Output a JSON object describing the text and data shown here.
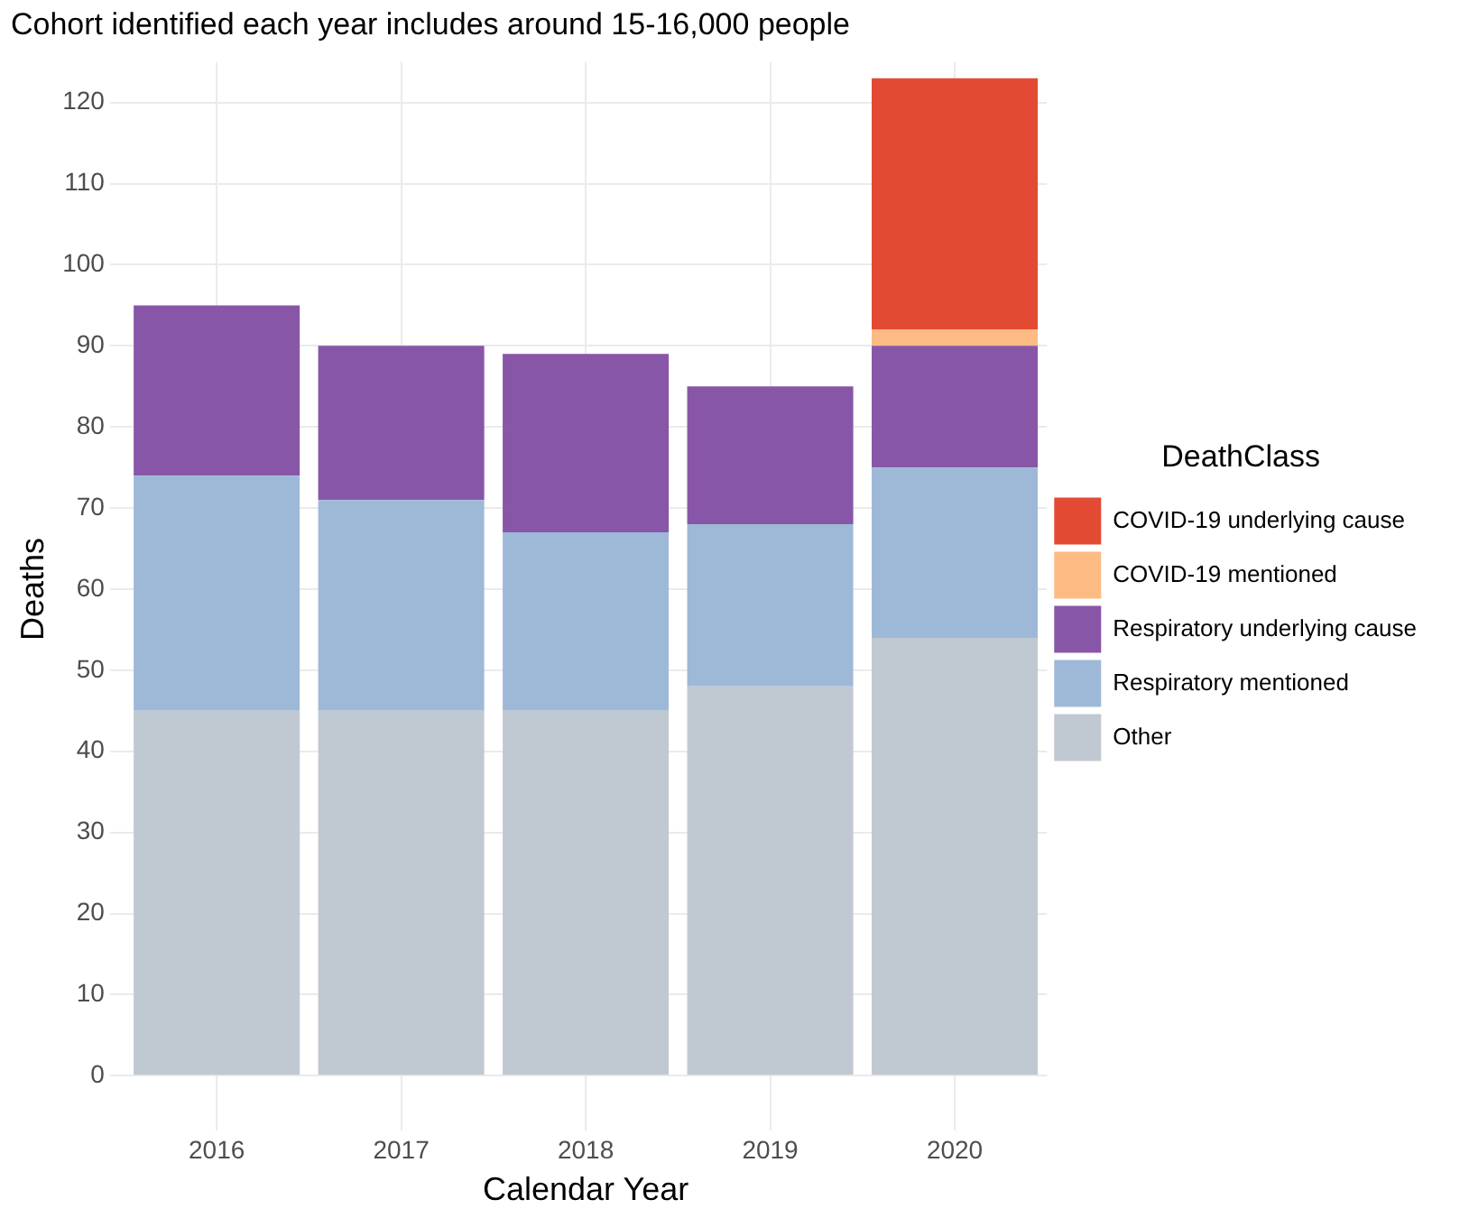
{
  "chart_data": {
    "type": "bar",
    "title": "Cohort identified each year includes around 15-16,000 people",
    "xlabel": "Calendar Year",
    "ylabel": "Deaths",
    "legend_title": "DeathClass",
    "categories": [
      "2016",
      "2017",
      "2018",
      "2019",
      "2020"
    ],
    "stacked": true,
    "series": [
      {
        "name": "Other",
        "color": "#c0c8d1",
        "values": [
          45,
          45,
          45,
          48,
          54
        ]
      },
      {
        "name": "Respiratory mentioned",
        "color": "#9eb9d8",
        "values": [
          29,
          26,
          22,
          20,
          21
        ]
      },
      {
        "name": "Respiratory underlying cause",
        "color": "#8856a7",
        "values": [
          21,
          19,
          22,
          17,
          15
        ]
      },
      {
        "name": "COVID-19 mentioned",
        "color": "#fdbb84",
        "values": [
          0,
          0,
          0,
          0,
          2
        ]
      },
      {
        "name": "COVID-19 underlying cause",
        "color": "#e34a33",
        "values": [
          0,
          0,
          0,
          0,
          31
        ]
      }
    ],
    "ylim": [
      -5,
      125
    ],
    "yticks": [
      0,
      10,
      20,
      30,
      40,
      50,
      60,
      70,
      80,
      90,
      100,
      110,
      120
    ],
    "grid": true,
    "legend": "right"
  }
}
